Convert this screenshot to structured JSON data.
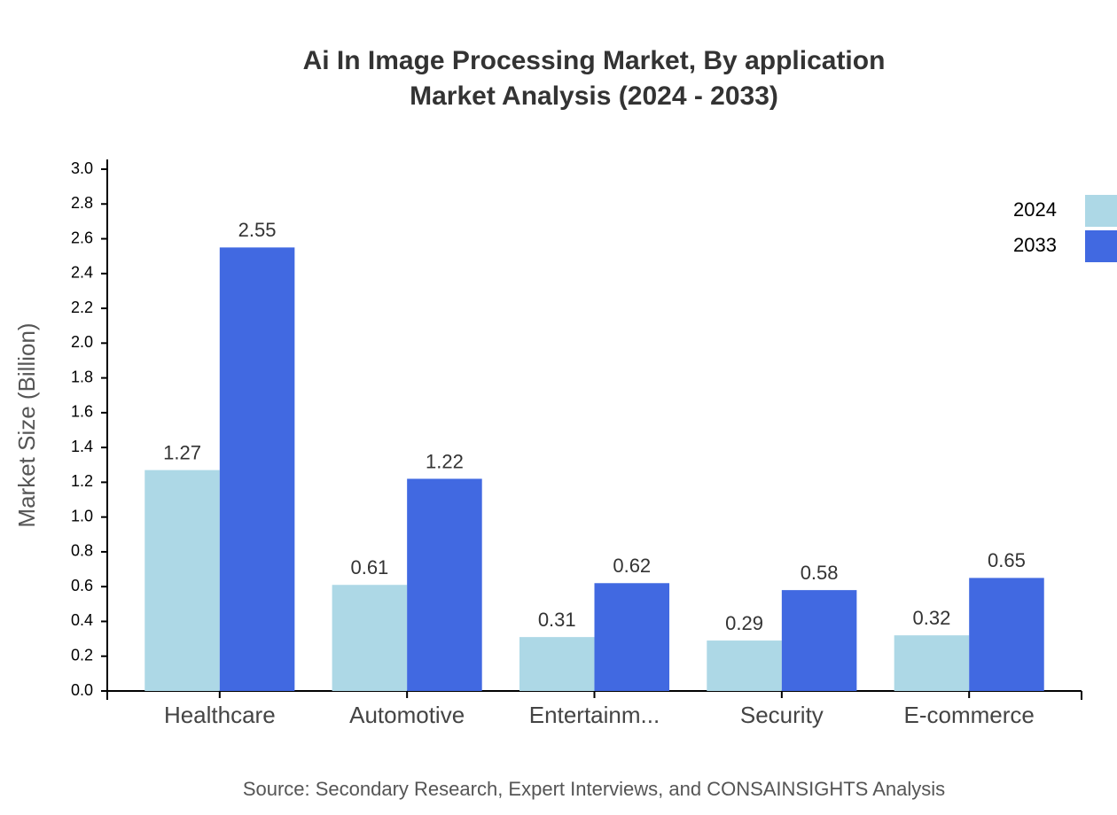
{
  "chart_data": {
    "type": "bar",
    "title": "Ai In Image Processing Market, By application",
    "subtitle": "Market Analysis (2024 - 2033)",
    "y_label": "Market Size (Billion)",
    "source": "Source: Secondary Research, Expert Interviews, and CONSAINSIGHTS Analysis",
    "categories": [
      "Healthcare",
      "Automotive",
      "Entertainm...",
      "Security",
      "E-commerce"
    ],
    "series": [
      {
        "name": "2024",
        "color": "#add8e6",
        "values": [
          1.27,
          0.61,
          0.31,
          0.29,
          0.32
        ]
      },
      {
        "name": "2033",
        "color": "#4169e1",
        "values": [
          2.55,
          1.22,
          0.62,
          0.58,
          0.65
        ]
      }
    ],
    "ylim": [
      0,
      3
    ],
    "yticks": [
      {
        "value": 0,
        "label": "0.0"
      },
      0.2,
      0.4,
      0.6,
      0.8,
      {
        "value": 1,
        "label": "1.0"
      },
      1.2,
      1.4,
      1.6,
      1.8,
      {
        "value": 2,
        "label": "2.0"
      },
      2.2,
      2.4,
      2.6,
      2.8,
      {
        "value": 3,
        "label": "3.0"
      }
    ],
    "legend": "top-right"
  }
}
